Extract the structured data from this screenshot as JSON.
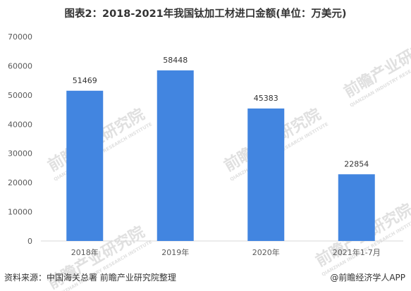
{
  "colors": {
    "bar": "#4285e0",
    "text": "#333333",
    "axis_text": "#595959",
    "baseline": "#d9d9d9",
    "watermark": "#d0d0d0"
  },
  "chart_data": {
    "type": "bar",
    "title": "图表2：2018-2021年我国钛加工材进口金额(单位：万美元)",
    "categories": [
      "2018年",
      "2019年",
      "2020年",
      "2021年1-7月"
    ],
    "values": [
      51469,
      58448,
      45383,
      22854
    ],
    "data_labels": [
      "51469",
      "58448",
      "45383",
      "22854"
    ],
    "y_ticks": [
      "0",
      "10000",
      "20000",
      "30000",
      "40000",
      "50000",
      "60000",
      "70000"
    ],
    "ylim": [
      0,
      70000
    ],
    "xlabel": "",
    "ylabel": "",
    "grid": false,
    "legend": "none"
  },
  "footer": {
    "source": "资料来源：中国海关总署 前瞻产业研究院整理",
    "brand": "@前瞻经济学人APP"
  },
  "watermark": {
    "name": "前瞻产业研究院",
    "tagline": "QIANZHAN INDUSTRY RESEARCH INSTITUTE"
  }
}
